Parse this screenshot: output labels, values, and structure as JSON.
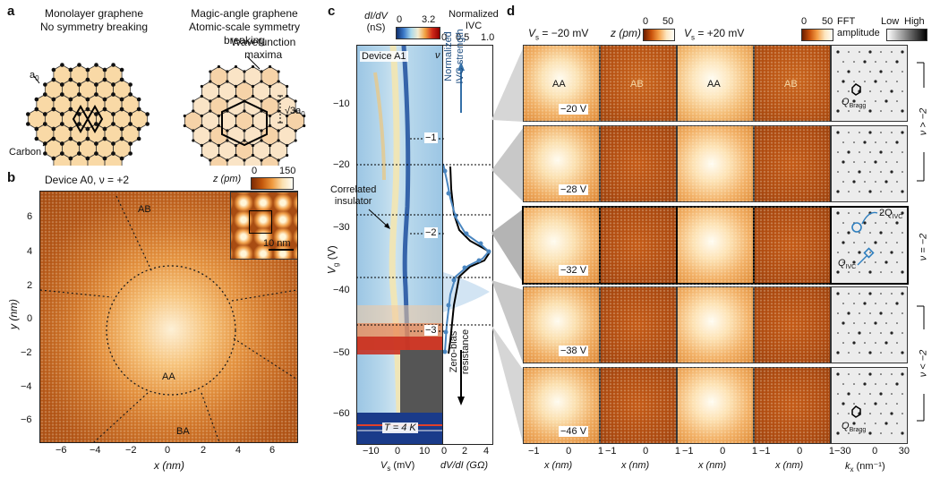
{
  "panel_a": {
    "label": "a",
    "left_title_1": "Monolayer graphene",
    "left_title_2": "No symmetry breaking",
    "right_title_1": "Magic-angle graphene",
    "right_title_2": "Atomic-scale symmetry breaking",
    "wavefunction_1": "Wavefunction",
    "wavefunction_2": "maxima",
    "a0_label": "a",
    "a0_sub": "0",
    "sqrt3_label": "√3a",
    "sqrt3_sub": "0",
    "carbon_label": "Carbon"
  },
  "panel_b": {
    "label": "b",
    "title": "Device A0, ν = +2",
    "colorbar_label": "z (pm)",
    "colorbar_ticks": [
      "0",
      "150"
    ],
    "region_ab": "AB",
    "region_aa": "AA",
    "region_ba": "BA",
    "scalebar": "10 nm",
    "xlabel": "x (nm)",
    "ylabel": "y (nm)",
    "x_ticks": [
      "−6",
      "−4",
      "−2",
      "0",
      "2",
      "4",
      "6"
    ],
    "y_ticks": [
      "6",
      "4",
      "2",
      "0",
      "−2",
      "−4",
      "−6"
    ]
  },
  "panel_c": {
    "label": "c",
    "colorbar_title_1": "dI/dV",
    "colorbar_title_2": "(nS)",
    "colorbar_ticks": [
      "0",
      "3.2"
    ],
    "ivc_title_1": "Normalized",
    "ivc_title_2": "IVC",
    "ivc_ticks": [
      "0",
      "0.5",
      "1.0"
    ],
    "device": "Device A1",
    "nu_symbol": "ν",
    "correlated_1": "Correlated",
    "correlated_2": "insulator",
    "temperature": "T = 4 K",
    "arrow_up_1": "Normalized",
    "arrow_up_2": "IVC strength",
    "arrow_down_1": "Zero-bias",
    "arrow_down_2": "resistance",
    "y_ticks": [
      "−10",
      "−20",
      "−30",
      "−40",
      "−50",
      "−60"
    ],
    "x_ticks": [
      "−10",
      "0",
      "10"
    ],
    "x2_ticks": [
      "0",
      "2",
      "4"
    ],
    "xlabel": "V",
    "xlabel_sub": "s",
    "xlabel_unit": " (mV)",
    "x2label": "dV/dI (GΩ)",
    "ylabel": "V",
    "ylabel_sub": "g",
    "ylabel_unit": " (V)",
    "nu_labels": [
      "−1",
      "−2",
      "−3"
    ]
  },
  "panel_d": {
    "label": "d",
    "col1_header": "V",
    "col1_sub": "s",
    "col1_value": " = −20 mV",
    "col2_header": "z (pm)",
    "col3_header": "V",
    "col3_sub": "s",
    "col3_value": " = +20 mV",
    "cbar_ticks": [
      "0",
      "50"
    ],
    "fft_header_1": "FFT",
    "fft_header_2": "amplitude",
    "fft_low": "Low",
    "fft_high": "High",
    "gate_labels": [
      "−20 V",
      "−28 V",
      "−32 V",
      "−38 V",
      "−46 V"
    ],
    "top_tags": [
      "AA",
      "AB",
      "AA",
      "AB"
    ],
    "bragg": "Q",
    "bragg_sub": "Bragg",
    "q_ivc": "Q",
    "ivc_sub": "IVC",
    "two_q_ivc": "2Q",
    "side_labels": [
      "ν > −2",
      "ν = −2",
      "ν < −2"
    ],
    "xlabels": [
      "x (nm)",
      "x (nm)",
      "x (nm)",
      "x (nm)",
      "k"
    ],
    "kx_sub": "x",
    "kx_unit": " (nm⁻¹)",
    "xticks_nm": [
      "−1",
      "0",
      "1"
    ],
    "xticks_k": [
      "−30",
      "0",
      "30"
    ]
  }
}
